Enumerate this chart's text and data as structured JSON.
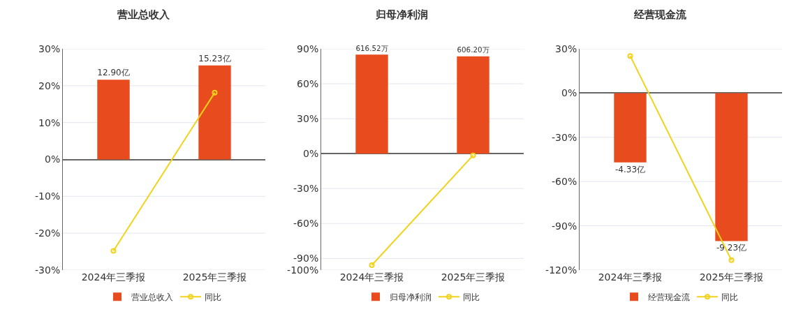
{
  "chart_data": [
    {
      "type": "bar",
      "title": "营业总收入",
      "categories": [
        "2024年三季报",
        "2025年三季报"
      ],
      "series": [
        {
          "name": "营业总收入",
          "axis": "y2",
          "color": "#e84c1e",
          "values": [
            12.9,
            15.23
          ],
          "value_labels": [
            "12.90亿",
            "15.23亿"
          ]
        },
        {
          "name": "同比",
          "type": "line",
          "color": "#f2d21b",
          "values": [
            -24.8,
            18.1
          ]
        }
      ],
      "ylim": [
        -30,
        30
      ],
      "yticks": [
        {
          "value": -30,
          "label": "-30%"
        },
        {
          "value": -20,
          "label": "-20%"
        },
        {
          "value": -10,
          "label": "-10%"
        },
        {
          "value": 0,
          "label": "0%"
        },
        {
          "value": 10,
          "label": "10%"
        },
        {
          "value": 20,
          "label": "20%"
        },
        {
          "value": 30,
          "label": "30%"
        }
      ],
      "y2lim": [
        -17.9,
        17.9
      ],
      "tick_labels": "xy",
      "grid": "y",
      "legend": "bottom",
      "marker": "circle",
      "line_style": "solid"
    },
    {
      "type": "bar",
      "title": "归母净利润",
      "categories": [
        "2024年三季报",
        "2025年三季报"
      ],
      "series": [
        {
          "name": "归母净利润",
          "axis": "y2",
          "color": "#e84c1e",
          "values": [
            616.52,
            606.2
          ],
          "value_labels": [
            "616.52万",
            "606.20万"
          ]
        },
        {
          "name": "同比",
          "type": "line",
          "color": "#f2d21b",
          "values": [
            -95.8,
            -1.5
          ]
        }
      ],
      "ylim": [
        -100,
        90
      ],
      "yticks": [
        {
          "value": -100,
          "label": "-100%"
        },
        {
          "value": -90,
          "label": "-90%"
        },
        {
          "value": -60,
          "label": "-60%"
        },
        {
          "value": -30,
          "label": "-30%"
        },
        {
          "value": 0,
          "label": "0%"
        },
        {
          "value": 30,
          "label": "30%"
        },
        {
          "value": 60,
          "label": "60%"
        },
        {
          "value": 90,
          "label": "90%"
        }
      ],
      "y2lim": [
        -725,
        652.5
      ],
      "tick_labels": "xy",
      "grid": "y",
      "legend": "bottom",
      "marker": "circle",
      "line_style": "solid"
    },
    {
      "type": "bar",
      "title": "经营现金流",
      "categories": [
        "2024年三季报",
        "2025年三季报"
      ],
      "series": [
        {
          "name": "经营现金流",
          "axis": "y2",
          "color": "#e84c1e",
          "values": [
            -4.33,
            -9.23
          ],
          "value_labels": [
            "-4.33亿",
            "-9.23亿"
          ]
        },
        {
          "name": "同比",
          "type": "line",
          "color": "#f2d21b",
          "values": [
            25.2,
            -113.3
          ]
        }
      ],
      "ylim": [
        -120,
        30
      ],
      "yticks": [
        {
          "value": -120,
          "label": "-120%"
        },
        {
          "value": -90,
          "label": "-90%"
        },
        {
          "value": -60,
          "label": "-60%"
        },
        {
          "value": -30,
          "label": "-30%"
        },
        {
          "value": 0,
          "label": "0%"
        },
        {
          "value": 30,
          "label": "30%"
        }
      ],
      "y2lim": [
        -11.04,
        2.76
      ],
      "tick_labels": "xy",
      "grid": "y",
      "legend": "bottom",
      "marker": "circle",
      "line_style": "solid"
    }
  ]
}
